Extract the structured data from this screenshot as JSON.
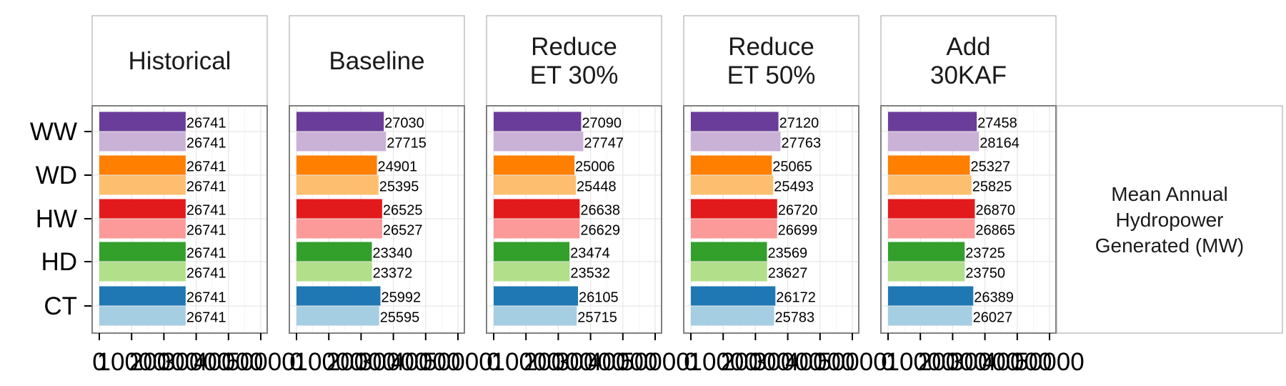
{
  "chart_data": {
    "type": "bar",
    "orientation": "horizontal",
    "facet_label": [
      "Mean Annual",
      "Hydropower",
      "Generated (MW)"
    ],
    "categories": [
      "WW",
      "WD",
      "HW",
      "HD",
      "CT"
    ],
    "x_ticks": [
      "0",
      "10000",
      "20000",
      "30000",
      "40000",
      "50000"
    ],
    "xlim": [
      0,
      50000
    ],
    "grid": true,
    "colors": {
      "WW": [
        "#6a3d9a",
        "#cab2d6"
      ],
      "WD": [
        "#ff7f00",
        "#fdbf6f"
      ],
      "HW": [
        "#e31a1c",
        "#fb9a99"
      ],
      "HD": [
        "#33a02c",
        "#b2df8a"
      ],
      "CT": [
        "#1f78b4",
        "#a6cee3"
      ]
    },
    "panels": [
      {
        "title": [
          "Historical"
        ],
        "values": {
          "WW": [
            26741,
            26741
          ],
          "WD": [
            26741,
            26741
          ],
          "HW": [
            26741,
            26741
          ],
          "HD": [
            26741,
            26741
          ],
          "CT": [
            26741,
            26741
          ]
        }
      },
      {
        "title": [
          "Baseline"
        ],
        "values": {
          "WW": [
            27030,
            27715
          ],
          "WD": [
            24901,
            25395
          ],
          "HW": [
            26525,
            26527
          ],
          "HD": [
            23340,
            23372
          ],
          "CT": [
            25992,
            25595
          ]
        }
      },
      {
        "title": [
          "Reduce",
          "ET 30%"
        ],
        "values": {
          "WW": [
            27090,
            27747
          ],
          "WD": [
            25006,
            25448
          ],
          "HW": [
            26638,
            26629
          ],
          "HD": [
            23474,
            23532
          ],
          "CT": [
            26105,
            25715
          ]
        }
      },
      {
        "title": [
          "Reduce",
          "ET 50%"
        ],
        "values": {
          "WW": [
            27120,
            27763
          ],
          "WD": [
            25065,
            25493
          ],
          "HW": [
            26720,
            26699
          ],
          "HD": [
            23569,
            23627
          ],
          "CT": [
            26172,
            25783
          ]
        }
      },
      {
        "title": [
          "Add",
          "30KAF"
        ],
        "values": {
          "WW": [
            27458,
            28164
          ],
          "WD": [
            25327,
            25825
          ],
          "HW": [
            26870,
            26865
          ],
          "HD": [
            23725,
            23750
          ],
          "CT": [
            26389,
            26027
          ]
        }
      }
    ]
  }
}
